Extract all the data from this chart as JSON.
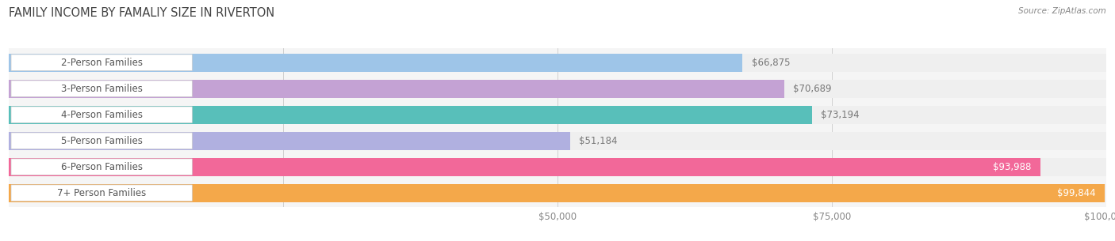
{
  "title": "FAMILY INCOME BY FAMALIY SIZE IN RIVERTON",
  "source": "Source: ZipAtlas.com",
  "categories": [
    "2-Person Families",
    "3-Person Families",
    "4-Person Families",
    "5-Person Families",
    "6-Person Families",
    "7+ Person Families"
  ],
  "values": [
    66875,
    70689,
    73194,
    51184,
    93988,
    99844
  ],
  "bar_colors": [
    "#9ec5e8",
    "#c4a2d4",
    "#58bfba",
    "#b0b0e0",
    "#f26899",
    "#f4a84a"
  ],
  "bar_bg_color": "#efefef",
  "label_text_color": "#555555",
  "value_text_color_outside": "#777777",
  "value_text_color_inside": "#ffffff",
  "xlim": [
    0,
    100000
  ],
  "figsize": [
    14.06,
    3.05
  ],
  "dpi": 100,
  "background_color": "#ffffff",
  "plot_bg_color": "#f5f5f5",
  "title_fontsize": 10.5,
  "label_fontsize": 8.5,
  "value_fontsize": 8.5,
  "source_fontsize": 7.5
}
